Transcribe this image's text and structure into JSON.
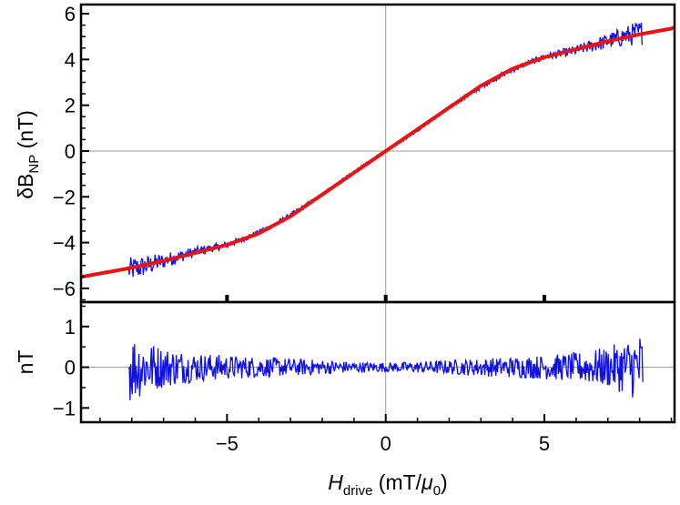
{
  "chart_data": [
    {
      "type": "line",
      "panel": "top",
      "ylabel_main": "δB",
      "ylabel_sub": "NP",
      "ylabel_unit": " (nT)",
      "xlim": [
        -9.6,
        9.1
      ],
      "ylim": [
        -6.6,
        6.4
      ],
      "yticks": [
        -6,
        -4,
        -2,
        0,
        2,
        4,
        6
      ],
      "ytick_labels": [
        "−6",
        "−4",
        "−2",
        "0",
        "2",
        "4",
        "6"
      ],
      "gridlines": {
        "x": [
          0
        ],
        "y": [
          0
        ]
      },
      "series": [
        {
          "kind": "noisy-data",
          "color": "#1010e0",
          "x": [
            -8.1,
            -7.5,
            -7.0,
            -6.5,
            -6.0,
            -5.5,
            -5.0,
            -4.5,
            -4.0,
            -3.5,
            -3.0,
            -2.5,
            -2.0,
            -1.5,
            -1.0,
            -0.5,
            0.0,
            0.5,
            1.0,
            1.5,
            2.0,
            2.5,
            3.0,
            3.5,
            4.0,
            4.5,
            5.0,
            5.5,
            6.0,
            6.5,
            7.0,
            7.5,
            8.1
          ],
          "y": [
            -5.2,
            -5.0,
            -4.8,
            -4.6,
            -4.4,
            -4.25,
            -4.1,
            -3.85,
            -3.55,
            -3.2,
            -2.8,
            -2.35,
            -1.9,
            -1.4,
            -0.9,
            -0.45,
            0.0,
            0.45,
            0.9,
            1.4,
            1.9,
            2.35,
            2.8,
            3.2,
            3.55,
            3.85,
            4.1,
            4.25,
            4.4,
            4.6,
            4.8,
            5.0,
            5.2
          ],
          "noise_amplitude": [
            0.55,
            0.45,
            0.35,
            0.28,
            0.22,
            0.18,
            0.15,
            0.13,
            0.12,
            0.11,
            0.1,
            0.09,
            0.08,
            0.07,
            0.06,
            0.06,
            0.05,
            0.06,
            0.06,
            0.07,
            0.08,
            0.09,
            0.1,
            0.11,
            0.12,
            0.13,
            0.15,
            0.18,
            0.22,
            0.28,
            0.35,
            0.45,
            0.55
          ]
        },
        {
          "kind": "fit",
          "color": "#ee1111",
          "x": [
            -9.6,
            -9.0,
            -8.0,
            -7.0,
            -6.0,
            -5.0,
            -4.0,
            -3.0,
            -2.0,
            -1.0,
            0.0,
            1.0,
            2.0,
            3.0,
            4.0,
            5.0,
            6.0,
            7.0,
            8.0,
            9.0,
            9.1
          ],
          "y": [
            -5.5,
            -5.35,
            -5.1,
            -4.8,
            -4.45,
            -4.1,
            -3.6,
            -2.85,
            -1.9,
            -0.95,
            0.0,
            0.95,
            1.9,
            2.85,
            3.6,
            4.1,
            4.45,
            4.8,
            5.1,
            5.35,
            5.4
          ]
        }
      ]
    },
    {
      "type": "line",
      "panel": "bottom",
      "ylabel": "nT",
      "xlabel_main": "H",
      "xlabel_sub": "drive",
      "xlabel_unit_a": " (mT/",
      "xlabel_mu": "μ",
      "xlabel_mu_sub": "0",
      "xlabel_unit_b": ")",
      "xlim": [
        -9.6,
        9.1
      ],
      "ylim": [
        -1.35,
        1.6
      ],
      "xticks": [
        -5,
        0,
        5
      ],
      "xtick_labels": [
        "−5",
        "0",
        "5"
      ],
      "yticks": [
        -1,
        0,
        1
      ],
      "ytick_labels": [
        "−1",
        "0",
        "1"
      ],
      "gridlines": {
        "x": [
          0
        ],
        "y": [
          0
        ]
      },
      "series": [
        {
          "kind": "residual",
          "color": "#1010e0",
          "x": [
            -8.1,
            -7.5,
            -7.0,
            -6.0,
            -5.0,
            -4.0,
            -3.0,
            -2.0,
            -1.0,
            0.0,
            1.0,
            2.0,
            3.0,
            4.0,
            5.0,
            6.0,
            7.0,
            7.5,
            8.1
          ],
          "noise_amplitude": [
            0.9,
            0.65,
            0.5,
            0.36,
            0.3,
            0.26,
            0.22,
            0.18,
            0.14,
            0.12,
            0.14,
            0.18,
            0.22,
            0.26,
            0.3,
            0.36,
            0.5,
            0.65,
            0.9
          ]
        }
      ]
    }
  ]
}
